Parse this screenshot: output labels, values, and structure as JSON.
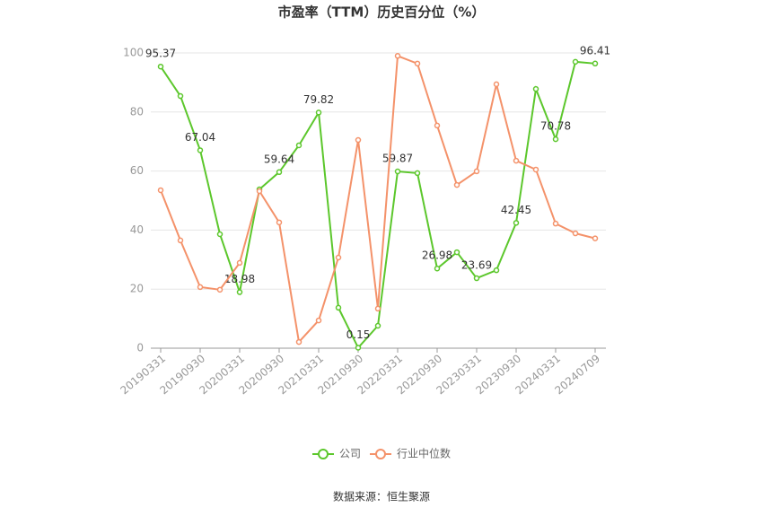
{
  "chart_data": {
    "type": "line",
    "title": "市盈率（TTM）历史百分位（%）",
    "source": "数据来源：恒生聚源",
    "categories": [
      "20190331",
      null,
      "20190930",
      null,
      "20200331",
      null,
      "20200930",
      null,
      "20210331",
      null,
      "20210930",
      null,
      "20220331",
      null,
      "20220930",
      null,
      "20230331",
      null,
      "20230930",
      null,
      "20240331",
      null,
      "20240709"
    ],
    "series": [
      {
        "name": "公司",
        "color": "#5cc72c",
        "values": [
          95.37,
          85.4,
          67.04,
          38.6,
          18.98,
          53.8,
          59.64,
          68.7,
          79.82,
          13.7,
          0.15,
          7.6,
          59.87,
          59.3,
          26.98,
          32.5,
          23.69,
          26.4,
          42.45,
          87.8,
          70.78,
          97.0,
          96.41
        ],
        "value_labels": [
          "95.37",
          null,
          "67.04",
          null,
          "18.98",
          null,
          "59.64",
          null,
          "79.82",
          null,
          "0.15",
          null,
          "59.87",
          null,
          "26.98",
          null,
          "23.69",
          null,
          "42.45",
          null,
          "70.78",
          null,
          "96.41"
        ]
      },
      {
        "name": "行业中位数",
        "color": "#f4926a",
        "values": [
          53.5,
          36.5,
          20.7,
          19.8,
          28.9,
          53.2,
          42.6,
          2.1,
          9.4,
          30.7,
          70.5,
          13.4,
          99.0,
          96.4,
          75.4,
          55.3,
          59.9,
          89.4,
          63.5,
          60.5,
          42.2,
          38.9,
          37.2
        ]
      }
    ],
    "ylim": [
      0,
      100
    ],
    "yticks": [
      0,
      20,
      40,
      60,
      80,
      100
    ],
    "grid": true,
    "legend": "bottom"
  }
}
